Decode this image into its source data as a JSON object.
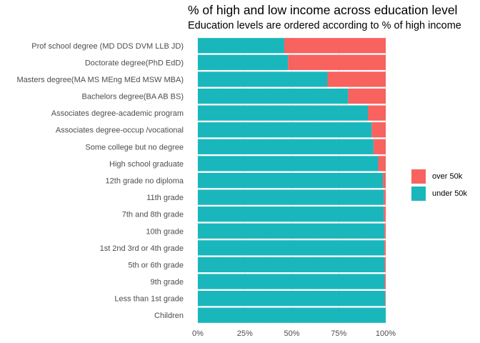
{
  "chart_data": {
    "type": "bar",
    "orientation": "horizontal",
    "stacked": true,
    "title": "% of high and low income across education level",
    "subtitle": "Education levels are ordered according to % of high income",
    "xlabel": "",
    "ylabel": "",
    "xlim": [
      0,
      1
    ],
    "x_ticks": [
      "0%",
      "25%",
      "50%",
      "75%",
      "100%"
    ],
    "x_tick_values": [
      0,
      0.25,
      0.5,
      0.75,
      1.0
    ],
    "grid": true,
    "legend_position": "right",
    "categories": [
      "Prof school degree (MD DDS DVM LLB JD)",
      "Doctorate degree(PhD EdD)",
      "Masters degree(MA MS MEng MEd MSW MBA)",
      "Bachelors degree(BA AB BS)",
      "Associates degree-academic program",
      "Associates degree-occup /vocational",
      "Some college but no degree",
      "High school graduate",
      "12th grade no diploma",
      "11th grade",
      "7th and 8th grade",
      "10th grade",
      "1st 2nd 3rd or 4th grade",
      "5th or 6th grade",
      "9th grade",
      "Less than 1st grade",
      "Children"
    ],
    "series": [
      {
        "name": "under 50k",
        "color": "#19b7bc",
        "values": [
          0.46,
          0.48,
          0.69,
          0.8,
          0.905,
          0.925,
          0.935,
          0.96,
          0.985,
          0.99,
          0.99,
          0.993,
          0.993,
          0.994,
          0.994,
          0.997,
          1.0
        ]
      },
      {
        "name": "over 50k",
        "color": "#f8625f",
        "values": [
          0.54,
          0.52,
          0.31,
          0.2,
          0.095,
          0.075,
          0.065,
          0.04,
          0.015,
          0.01,
          0.01,
          0.007,
          0.007,
          0.006,
          0.006,
          0.003,
          0.0
        ]
      }
    ],
    "legend": [
      {
        "label": "over 50k",
        "color": "#f8625f"
      },
      {
        "label": "under 50k",
        "color": "#19b7bc"
      }
    ]
  }
}
